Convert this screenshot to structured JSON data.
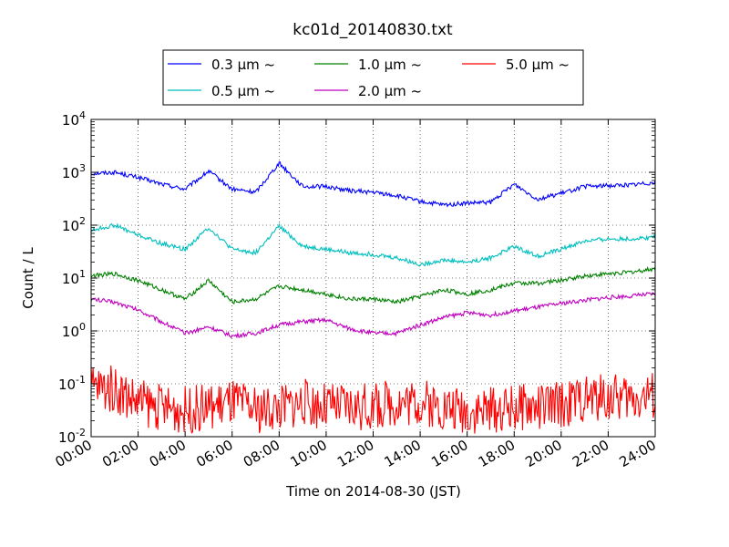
{
  "chart_data": {
    "type": "line",
    "title": "kc01d_20140830.txt",
    "xlabel": "Time on 2014-08-30 (JST)",
    "ylabel": "Count / L",
    "xlim": [
      "00:00",
      "24:00"
    ],
    "ylim": [
      0.01,
      10000
    ],
    "yscale": "log",
    "grid": true,
    "legend_position": "top-center",
    "x_ticks": [
      "00:00",
      "02:00",
      "04:00",
      "06:00",
      "08:00",
      "10:00",
      "12:00",
      "14:00",
      "16:00",
      "18:00",
      "20:00",
      "22:00",
      "24:00"
    ],
    "y_ticks": [
      {
        "base": "10",
        "exp": "-2"
      },
      {
        "base": "10",
        "exp": "-1"
      },
      {
        "base": "10",
        "exp": "0"
      },
      {
        "base": "10",
        "exp": "1"
      },
      {
        "base": "10",
        "exp": "2"
      },
      {
        "base": "10",
        "exp": "3"
      },
      {
        "base": "10",
        "exp": "4"
      }
    ],
    "x": [
      "00:00",
      "01:00",
      "02:00",
      "03:00",
      "04:00",
      "05:00",
      "06:00",
      "07:00",
      "08:00",
      "09:00",
      "10:00",
      "11:00",
      "12:00",
      "13:00",
      "14:00",
      "15:00",
      "16:00",
      "17:00",
      "18:00",
      "19:00",
      "20:00",
      "21:00",
      "22:00",
      "23:00",
      "24:00"
    ],
    "series": [
      {
        "name": "0.3 µm ~",
        "color": "#0000ff",
        "values": [
          950,
          1000,
          800,
          600,
          480,
          1050,
          480,
          420,
          1500,
          540,
          540,
          450,
          420,
          360,
          280,
          240,
          260,
          270,
          600,
          310,
          400,
          540,
          560,
          580,
          650
        ]
      },
      {
        "name": "0.5 µm ~",
        "color": "#00bfbf",
        "values": [
          80,
          100,
          65,
          45,
          35,
          90,
          35,
          30,
          95,
          40,
          35,
          30,
          28,
          24,
          18,
          22,
          20,
          24,
          40,
          26,
          35,
          50,
          55,
          55,
          60
        ]
      },
      {
        "name": "1.0 µm ~",
        "color": "#008000",
        "values": [
          11,
          12,
          9,
          6,
          4,
          9,
          3.5,
          4,
          7,
          6,
          5,
          4,
          4,
          3.5,
          4.5,
          6,
          5,
          6,
          8,
          8,
          9,
          11,
          12,
          13,
          15
        ]
      },
      {
        "name": "2.0 µm ~",
        "color": "#bf00bf",
        "values": [
          4,
          3.5,
          2.5,
          1.5,
          0.9,
          1.2,
          0.8,
          0.9,
          1.3,
          1.5,
          1.6,
          1.1,
          0.9,
          0.9,
          1.3,
          1.8,
          2.2,
          2.0,
          2.4,
          2.8,
          3.3,
          3.8,
          4.3,
          4.6,
          5.0
        ]
      },
      {
        "name": "5.0 µm ~",
        "color": "#ff0000",
        "values": [
          0.1,
          0.09,
          0.05,
          0.04,
          0.035,
          0.04,
          0.05,
          0.035,
          0.04,
          0.05,
          0.04,
          0.04,
          0.04,
          0.05,
          0.05,
          0.04,
          0.035,
          0.035,
          0.04,
          0.04,
          0.045,
          0.06,
          0.06,
          0.06,
          0.07
        ]
      }
    ]
  }
}
